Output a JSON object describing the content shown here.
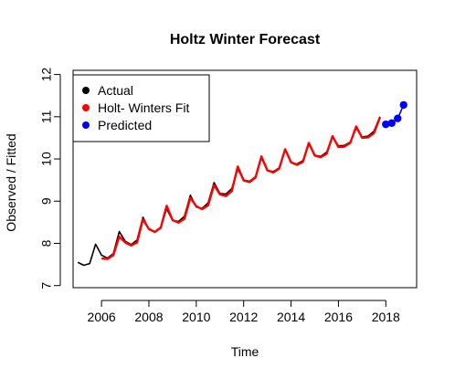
{
  "chart_data": {
    "type": "line",
    "title": "Holtz Winter Forecast",
    "xlabel": "Time",
    "ylabel": "Observed / Fitted",
    "xlim": [
      2004.8,
      2019.3
    ],
    "ylim": [
      6.95,
      12.1
    ],
    "x_ticks": [
      2006,
      2008,
      2010,
      2012,
      2014,
      2016,
      2018
    ],
    "y_ticks": [
      7,
      8,
      9,
      10,
      11,
      12
    ],
    "grid": false,
    "legend_position": "top-left",
    "series": [
      {
        "name": "Actual",
        "color": "#000000",
        "style": "line",
        "x": [
          2005.0,
          2005.25,
          2005.5,
          2005.75,
          2006.0,
          2006.25,
          2006.5,
          2006.75,
          2007.0,
          2007.25,
          2007.5,
          2007.75,
          2008.0,
          2008.25,
          2008.5,
          2008.75,
          2009.0,
          2009.25,
          2009.5,
          2009.75,
          2010.0,
          2010.25,
          2010.5,
          2010.75,
          2011.0,
          2011.25,
          2011.5,
          2011.75,
          2012.0,
          2012.25,
          2012.5,
          2012.75,
          2013.0,
          2013.25,
          2013.5,
          2013.75,
          2014.0,
          2014.25,
          2014.5,
          2014.75,
          2015.0,
          2015.25,
          2015.5,
          2015.75,
          2016.0,
          2016.25,
          2016.5,
          2016.75,
          2017.0,
          2017.25,
          2017.5,
          2017.75
        ],
        "y": [
          7.55,
          7.48,
          7.52,
          7.98,
          7.72,
          7.65,
          7.76,
          8.28,
          8.05,
          7.97,
          8.08,
          8.62,
          8.33,
          8.28,
          8.38,
          8.82,
          8.54,
          8.52,
          8.64,
          9.14,
          8.86,
          8.83,
          8.96,
          9.44,
          9.18,
          9.17,
          9.3,
          9.76,
          9.5,
          9.47,
          9.58,
          10.02,
          9.73,
          9.7,
          9.79,
          10.21,
          9.92,
          9.88,
          9.96,
          10.35,
          10.09,
          10.06,
          10.16,
          10.52,
          10.31,
          10.32,
          10.4,
          10.73,
          10.52,
          10.54,
          10.66,
          11.0
        ]
      },
      {
        "name": "Holt- Winters Fit",
        "color": "#ff0000",
        "style": "line",
        "x": [
          2006.0,
          2006.25,
          2006.5,
          2006.75,
          2007.0,
          2007.25,
          2007.5,
          2007.75,
          2008.0,
          2008.25,
          2008.5,
          2008.75,
          2009.0,
          2009.25,
          2009.5,
          2009.75,
          2010.0,
          2010.25,
          2010.5,
          2010.75,
          2011.0,
          2011.25,
          2011.5,
          2011.75,
          2012.0,
          2012.25,
          2012.5,
          2012.75,
          2013.0,
          2013.25,
          2013.5,
          2013.75,
          2014.0,
          2014.25,
          2014.5,
          2014.75,
          2015.0,
          2015.25,
          2015.5,
          2015.75,
          2016.0,
          2016.25,
          2016.5,
          2016.75,
          2017.0,
          2017.25,
          2017.5,
          2017.75
        ],
        "y": [
          7.64,
          7.63,
          7.72,
          8.16,
          8.02,
          7.95,
          8.02,
          8.57,
          8.34,
          8.27,
          8.37,
          8.89,
          8.55,
          8.49,
          8.58,
          9.08,
          8.88,
          8.81,
          8.9,
          9.38,
          9.16,
          9.12,
          9.24,
          9.82,
          9.49,
          9.45,
          9.56,
          10.06,
          9.73,
          9.68,
          9.77,
          10.23,
          9.92,
          9.86,
          9.93,
          10.38,
          10.08,
          10.04,
          10.12,
          10.54,
          10.28,
          10.29,
          10.38,
          10.77,
          10.5,
          10.51,
          10.61,
          10.98
        ]
      },
      {
        "name": "Predicted",
        "color": "#0000ff",
        "style": "points-line",
        "x": [
          2018.0,
          2018.25,
          2018.5,
          2018.75
        ],
        "y": [
          10.82,
          10.85,
          10.96,
          11.28
        ]
      }
    ]
  }
}
